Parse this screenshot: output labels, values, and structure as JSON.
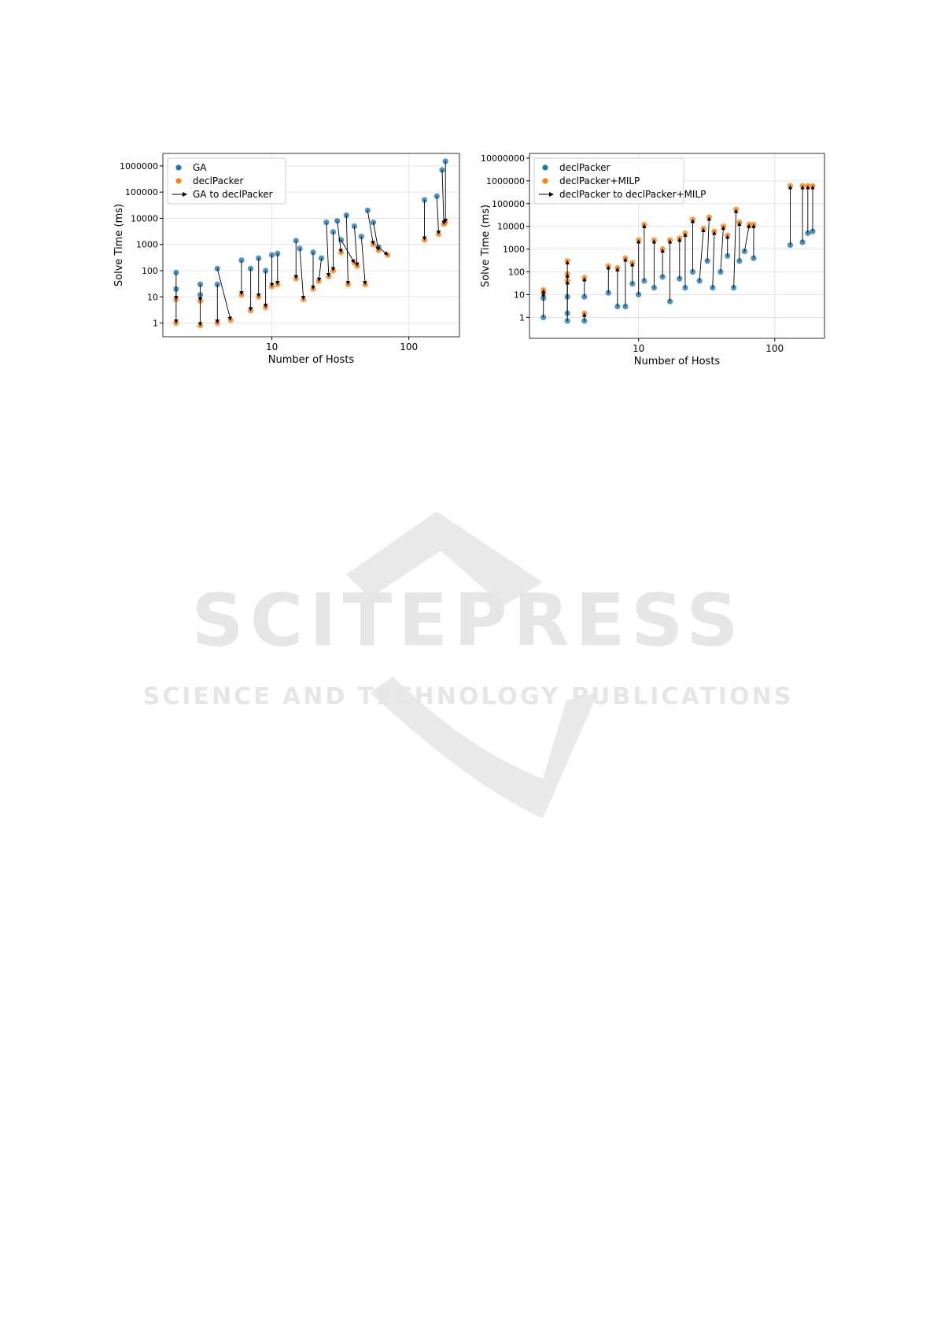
{
  "chart_data": [
    {
      "type": "scatter",
      "xlabel": "Number of Hosts",
      "ylabel": "Solve Time (ms)",
      "xscale": "log",
      "yscale": "log",
      "grid": true,
      "legend": "upper left",
      "xlim": [
        1.6,
        234
      ],
      "xticks": [
        10,
        100
      ],
      "ylim": [
        0.3,
        3000000
      ],
      "yticks": [
        1,
        10,
        100,
        1000,
        10000,
        100000,
        1000000
      ],
      "series": [
        {
          "name": "GA",
          "color": "#1f77b4",
          "x": [
            2,
            2,
            3,
            3,
            4,
            4,
            6,
            7,
            8,
            9,
            10,
            11,
            15,
            16,
            20,
            23,
            25,
            28,
            30,
            32,
            35,
            40,
            45,
            50,
            55,
            60,
            130,
            160,
            175,
            185
          ],
          "values": [
            85,
            20,
            30,
            12,
            120,
            30,
            250,
            120,
            300,
            100,
            400,
            450,
            1400,
            700,
            500,
            300,
            7000,
            3000,
            8000,
            1500,
            13000,
            5000,
            2000,
            20000,
            7000,
            800,
            50000,
            70000,
            700000,
            1500000
          ]
        },
        {
          "name": "declPacker",
          "color": "#ff7f0e",
          "x": [
            2,
            2,
            3,
            3,
            5,
            4,
            6,
            7,
            8,
            9,
            10,
            11,
            15,
            17,
            20,
            22,
            26,
            28,
            32,
            40,
            36,
            42,
            48,
            55,
            60,
            70,
            130,
            165,
            180,
            185
          ],
          "values": [
            8,
            1,
            7,
            0.8,
            1.3,
            1,
            12,
            3,
            10,
            4,
            25,
            30,
            50,
            8,
            20,
            40,
            60,
            100,
            500,
            200,
            30,
            150,
            30,
            1000,
            600,
            400,
            1500,
            2500,
            6000,
            7000
          ]
        }
      ],
      "arrows": {
        "name": "GA to declPacker",
        "color": "#000000"
      }
    },
    {
      "type": "scatter",
      "xlabel": "Number of Hosts",
      "ylabel": "Solve Time (ms)",
      "xscale": "log",
      "yscale": "log",
      "grid": true,
      "legend": "upper left",
      "xlim": [
        1.58,
        232
      ],
      "xticks": [
        10,
        100
      ],
      "ylim": [
        0.12,
        16000000
      ],
      "yticks": [
        1,
        10,
        100,
        1000,
        10000,
        100000,
        1000000,
        10000000
      ],
      "series": [
        {
          "name": "declPacker",
          "color": "#1f77b4",
          "x": [
            2,
            2,
            3,
            3,
            3,
            4,
            4,
            6,
            7,
            8,
            9,
            10,
            11,
            13,
            15,
            17,
            20,
            22,
            25,
            28,
            32,
            35,
            40,
            45,
            50,
            55,
            60,
            70,
            130,
            160,
            175,
            190
          ],
          "values": [
            7,
            1,
            1.5,
            8,
            0.7,
            8,
            0.7,
            12,
            3,
            3,
            30,
            10,
            40,
            20,
            60,
            5,
            50,
            20,
            100,
            40,
            300,
            20,
            100,
            500,
            20,
            300,
            800,
            400,
            1500,
            2000,
            5000,
            6000
          ]
        },
        {
          "name": "declPacker+MILP",
          "color": "#ff7f0e",
          "x": [
            2,
            2,
            3,
            3,
            3,
            4,
            4,
            6,
            7,
            8,
            9,
            10,
            11,
            13,
            15,
            17,
            20,
            22,
            25,
            30,
            33,
            36,
            42,
            45,
            52,
            55,
            65,
            70,
            130,
            160,
            175,
            190
          ],
          "values": [
            16,
            12,
            300,
            80,
            40,
            55,
            1.5,
            180,
            150,
            400,
            250,
            2500,
            12000,
            2500,
            1000,
            2500,
            3000,
            5000,
            20000,
            8000,
            25000,
            6000,
            10000,
            4000,
            55000,
            15000,
            12000,
            12000,
            600000,
            600000,
            600000,
            600000
          ]
        }
      ],
      "arrows": {
        "name": "declPacker to declPacker+MILP",
        "color": "#000000"
      }
    }
  ],
  "watermark": {
    "title": "SCITEPRESS",
    "subtitle": "SCIENCE AND TECHNOLOGY PUBLICATIONS"
  }
}
